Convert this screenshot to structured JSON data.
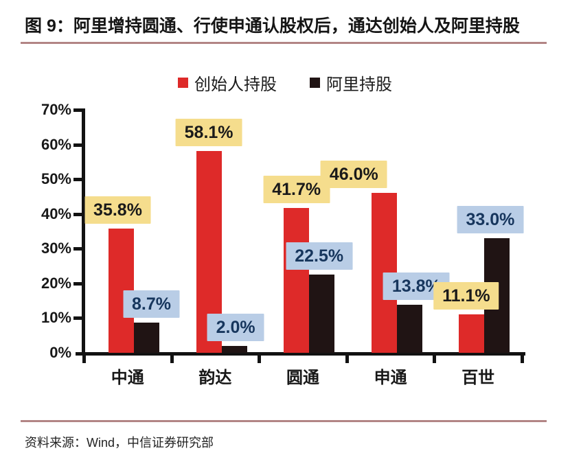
{
  "figure": {
    "title": "图 9：阿里增持圆通、行使申通认股权后，通达创始人及阿里持股",
    "source": "资料来源：Wind，中信证券研究部"
  },
  "chart_data": {
    "type": "bar",
    "title": "图 9：阿里增持圆通、行使申通认股权后，通达创始人及阿里持股",
    "categories": [
      "中通",
      "韵达",
      "圆通",
      "申通",
      "百世"
    ],
    "series": [
      {
        "name": "创始人持股",
        "color": "#de2a29",
        "label_bg": "#f5dd8d",
        "label_text_color": "#1a1a1a",
        "values": [
          35.8,
          58.1,
          41.7,
          46.0,
          11.1
        ]
      },
      {
        "name": "阿里持股",
        "color": "#201414",
        "label_bg": "#b9cde6",
        "label_text_color": "#17365d",
        "values": [
          8.7,
          2.0,
          22.5,
          13.8,
          33.0
        ]
      }
    ],
    "xlabel": "",
    "ylabel": "",
    "ylim": [
      0,
      70
    ],
    "ytick_step": 10,
    "ytick_suffix": "%",
    "grid": false,
    "legend_position": "top",
    "value_label_format": "one-decimal-percent",
    "value_label_dx": [
      [
        -5,
        0,
        0,
        -44,
        -8
      ],
      [
        7,
        2,
        -4,
        10,
        -10
      ]
    ]
  },
  "colors": {
    "rule": "#b28585",
    "axis": "#121212",
    "background": "#ffffff"
  }
}
